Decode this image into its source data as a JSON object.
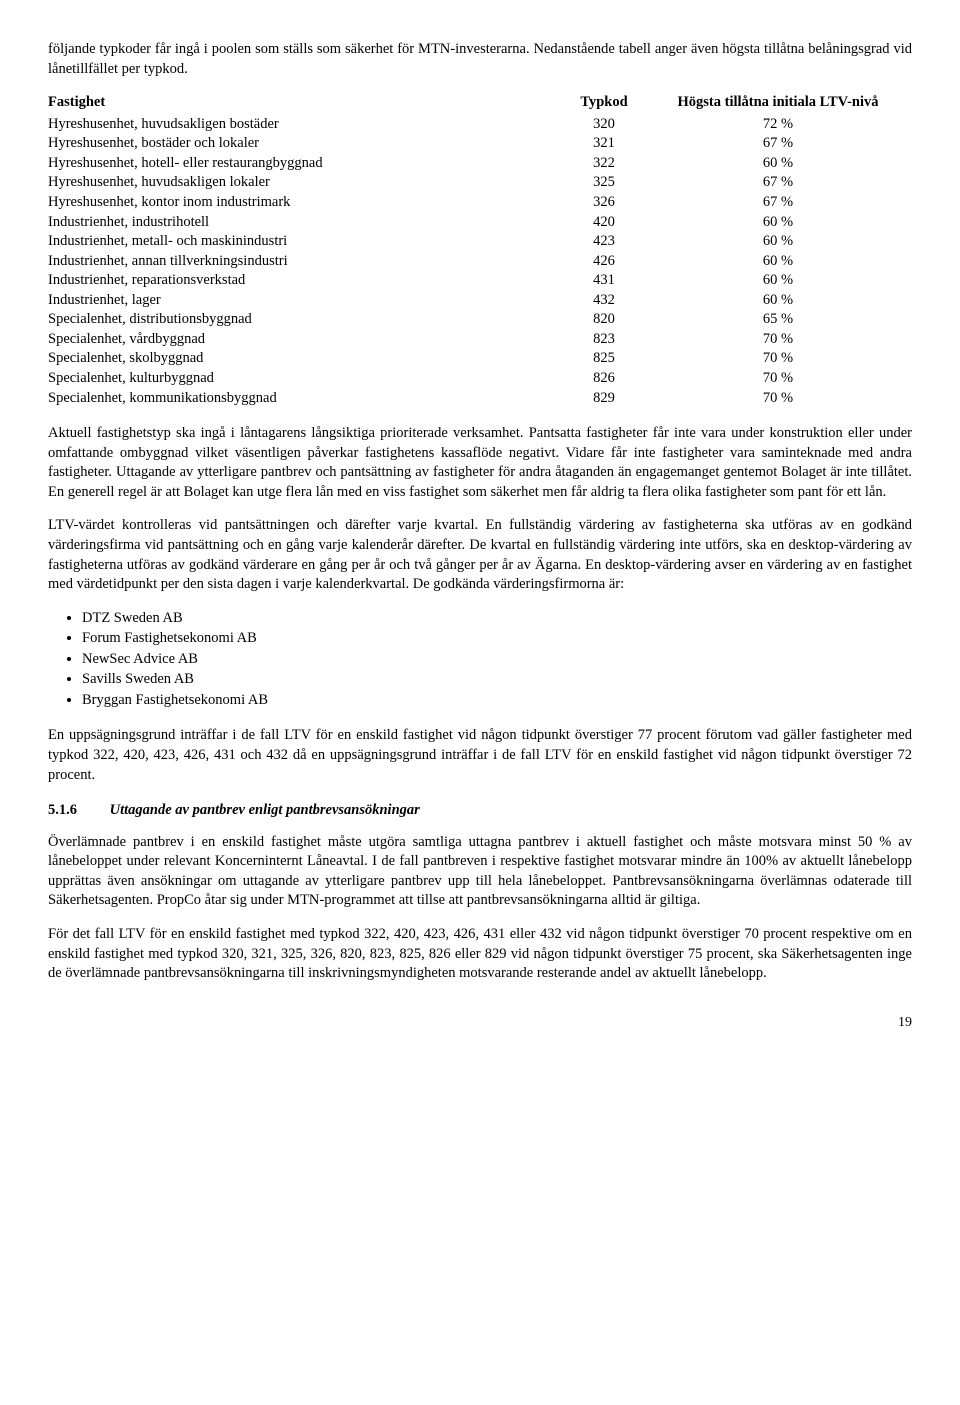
{
  "intro": "följande typkoder får ingå i poolen som ställs som säkerhet för MTN-investerarna. Nedanstående tabell anger även högsta tillåtna belåningsgrad vid lånetillfället per typkod.",
  "table": {
    "headers": {
      "fastighet": "Fastighet",
      "typkod": "Typkod",
      "ltv": "Högsta tillåtna initiala LTV-nivå"
    },
    "rows": [
      {
        "fastighet": "Hyreshusenhet, huvudsakligen bostäder",
        "typkod": "320",
        "ltv": "72 %"
      },
      {
        "fastighet": "Hyreshusenhet, bostäder och lokaler",
        "typkod": "321",
        "ltv": "67 %"
      },
      {
        "fastighet": "Hyreshusenhet, hotell- eller restaurangbyggnad",
        "typkod": "322",
        "ltv": "60 %"
      },
      {
        "fastighet": "Hyreshusenhet, huvudsakligen lokaler",
        "typkod": "325",
        "ltv": "67 %"
      },
      {
        "fastighet": "Hyreshusenhet, kontor inom industrimark",
        "typkod": "326",
        "ltv": "67 %"
      },
      {
        "fastighet": "Industrienhet, industrihotell",
        "typkod": "420",
        "ltv": "60 %"
      },
      {
        "fastighet": "Industrienhet, metall- och maskinindustri",
        "typkod": "423",
        "ltv": "60 %"
      },
      {
        "fastighet": "Industrienhet, annan tillverkningsindustri",
        "typkod": "426",
        "ltv": "60 %"
      },
      {
        "fastighet": "Industrienhet, reparationsverkstad",
        "typkod": "431",
        "ltv": "60 %"
      },
      {
        "fastighet": "Industrienhet, lager",
        "typkod": "432",
        "ltv": "60 %"
      },
      {
        "fastighet": "Specialenhet, distributionsbyggnad",
        "typkod": "820",
        "ltv": "65 %"
      },
      {
        "fastighet": "Specialenhet, vårdbyggnad",
        "typkod": "823",
        "ltv": "70 %"
      },
      {
        "fastighet": "Specialenhet, skolbyggnad",
        "typkod": "825",
        "ltv": "70 %"
      },
      {
        "fastighet": "Specialenhet, kulturbyggnad",
        "typkod": "826",
        "ltv": "70 %"
      },
      {
        "fastighet": "Specialenhet, kommunikationsbyggnad",
        "typkod": "829",
        "ltv": "70 %"
      }
    ]
  },
  "para2": "Aktuell fastighetstyp ska ingå i låntagarens långsiktiga prioriterade verksamhet. Pantsatta fastigheter får inte vara under konstruktion eller under omfattande ombyggnad vilket väsentligen påverkar fastighetens kassaflöde negativt. Vidare får inte fastigheter vara saminteknade med andra fastigheter. Uttagande av ytterligare pantbrev och pantsättning av fastigheter för andra åtaganden än engagemanget gentemot Bolaget är inte tillåtet. En generell regel är att Bolaget kan utge flera lån med en viss fastighet som säkerhet men får aldrig ta flera olika fastigheter som pant för ett lån.",
  "para3": "LTV-värdet kontrolleras vid pantsättningen och därefter varje kvartal. En fullständig värdering av fastigheterna ska utföras av en godkänd värderingsfirma vid pantsättning och en gång varje kalenderår därefter. De kvartal en fullständig värdering inte utförs, ska en desktop-värdering av fastigheterna utföras av godkänd värderare en gång per år och två gånger per år av Ägarna. En desktop-värdering avser en värdering av en fastighet med värdetidpunkt per den sista dagen i varje kalenderkvartal. De godkända värderingsfirmorna är:",
  "firms": [
    "DTZ Sweden AB",
    "Forum Fastighetsekonomi AB",
    "NewSec Advice AB",
    "Savills Sweden AB",
    "Bryggan Fastighetsekonomi AB"
  ],
  "para4": "En uppsägningsgrund inträffar i de fall LTV för en enskild fastighet vid någon tidpunkt överstiger 77 procent förutom vad gäller fastigheter med typkod 322, 420, 423, 426, 431 och 432 då en uppsägningsgrund inträffar i de fall LTV för en enskild fastighet vid någon tidpunkt överstiger 72 procent.",
  "section": {
    "number": "5.1.6",
    "title": "Uttagande av pantbrev enligt pantbrevsansökningar"
  },
  "para5": "Överlämnade pantbrev i en enskild fastighet måste utgöra samtliga uttagna pantbrev i aktuell fastighet och måste motsvara minst 50 % av lånebeloppet under relevant Koncerninternt Låneavtal. I de fall pantbreven i respektive fastighet motsvarar mindre än 100% av aktuellt lånebelopp upprättas även ansökningar om uttagande av ytterligare pantbrev upp till hela lånebeloppet. Pantbrevsansökningarna överlämnas odaterade till Säkerhetsagenten. PropCo åtar sig under MTN-programmet att tillse att pantbrevsansökningarna alltid är giltiga.",
  "para6": "För det fall LTV för en enskild fastighet med typkod 322, 420, 423, 426, 431 eller 432 vid någon tidpunkt överstiger 70 procent respektive om en enskild fastighet med typkod 320, 321, 325, 326, 820, 823, 825, 826 eller 829 vid någon tidpunkt överstiger 75 procent, ska Säkerhetsagenten inge de överlämnade pantbrevsansökningarna till inskrivningsmyndigheten motsvarande resterande andel av aktuellt lånebelopp.",
  "pagenum": "19"
}
